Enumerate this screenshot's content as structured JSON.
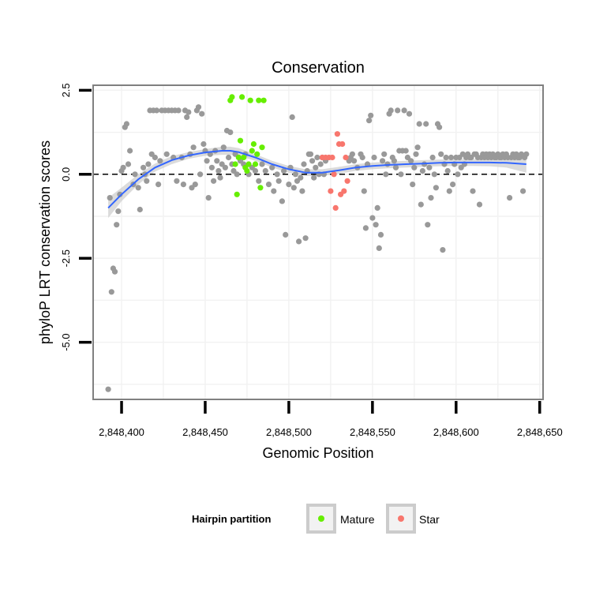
{
  "chart_data": {
    "type": "scatter",
    "title": "Conservation",
    "xlabel": "Genomic Position",
    "ylabel": "phyloP LRT conservation scores",
    "xlim": [
      2848383,
      2848652
    ],
    "ylim": [
      -6.7,
      2.65
    ],
    "x_ticks": [
      2848400,
      2848450,
      2848500,
      2848550,
      2848600,
      2848650
    ],
    "x_tick_labels": [
      "2,848,400",
      "2,848,450",
      "2,848,500",
      "2,848,550",
      "2,848,600",
      "2,848,650"
    ],
    "y_ticks": [
      2.5,
      0.0,
      -2.5,
      -5.0
    ],
    "y_tick_labels": [
      "2.5",
      "0.0",
      "-2.5",
      "-5.0"
    ],
    "hline": 0,
    "grid": true,
    "legend": {
      "title": "Hairpin partition",
      "position": "bottom",
      "entries": [
        {
          "label": "Mature",
          "color": "#66ee00"
        },
        {
          "label": "Star",
          "color": "#f8766d"
        }
      ]
    },
    "series": [
      {
        "color": "#999999",
        "points": [
          [
            2848392,
            -6.4
          ],
          [
            2848393,
            -0.7
          ],
          [
            2848394,
            -3.5
          ],
          [
            2848395,
            -2.8
          ],
          [
            2848396,
            -2.9
          ],
          [
            2848397,
            -1.5
          ],
          [
            2848398,
            -1.1
          ],
          [
            2848399,
            -0.6
          ],
          [
            2848400,
            0.1
          ],
          [
            2848401,
            0.2
          ],
          [
            2848402,
            1.4
          ],
          [
            2848403,
            1.5
          ],
          [
            2848404,
            0.3
          ],
          [
            2848405,
            0.7
          ],
          [
            2848407,
            -0.3
          ],
          [
            2848408,
            0.0
          ],
          [
            2848410,
            -0.4
          ],
          [
            2848411,
            -1.05
          ],
          [
            2848413,
            0.2
          ],
          [
            2848414,
            0.0
          ],
          [
            2848415,
            -0.2
          ],
          [
            2848416,
            0.3
          ],
          [
            2848417,
            1.9
          ],
          [
            2848418,
            0.6
          ],
          [
            2848419,
            1.9
          ],
          [
            2848420,
            0.5
          ],
          [
            2848421,
            1.9
          ],
          [
            2848422,
            -0.3
          ],
          [
            2848423,
            0.4
          ],
          [
            2848424,
            1.9
          ],
          [
            2848426,
            1.9
          ],
          [
            2848427,
            0.6
          ],
          [
            2848428,
            1.9
          ],
          [
            2848430,
            1.9
          ],
          [
            2848431,
            0.5
          ],
          [
            2848432,
            1.9
          ],
          [
            2848433,
            -0.2
          ],
          [
            2848434,
            1.9
          ],
          [
            2848436,
            0.5
          ],
          [
            2848437,
            -0.3
          ],
          [
            2848438,
            1.9
          ],
          [
            2848439,
            1.7
          ],
          [
            2848440,
            1.85
          ],
          [
            2848441,
            0.6
          ],
          [
            2848442,
            -0.4
          ],
          [
            2848443,
            0.8
          ],
          [
            2848444,
            -0.3
          ],
          [
            2848445,
            1.9
          ],
          [
            2848446,
            2.0
          ],
          [
            2848447,
            0.0
          ],
          [
            2848448,
            1.8
          ],
          [
            2848449,
            0.9
          ],
          [
            2848450,
            0.7
          ],
          [
            2848451,
            0.4
          ],
          [
            2848452,
            -0.7
          ],
          [
            2848453,
            0.6
          ],
          [
            2848454,
            0.2
          ],
          [
            2848455,
            -0.2
          ],
          [
            2848456,
            0.7
          ],
          [
            2848457,
            0.4
          ],
          [
            2848458,
            0.1
          ],
          [
            2848459,
            -0.1
          ],
          [
            2848460,
            0.3
          ],
          [
            2848461,
            0.8
          ],
          [
            2848462,
            0.2
          ],
          [
            2848463,
            1.3
          ],
          [
            2848464,
            0.5
          ],
          [
            2848465,
            1.25
          ],
          [
            2848466,
            0.3
          ],
          [
            2848467,
            0.1
          ],
          [
            2848468,
            0.6
          ],
          [
            2848469,
            0.0
          ],
          [
            2848471,
            0.4
          ],
          [
            2848473,
            0.3
          ],
          [
            2848474,
            0.6
          ],
          [
            2848476,
            0.0
          ],
          [
            2848478,
            0.2
          ],
          [
            2848480,
            0.1
          ],
          [
            2848482,
            -0.2
          ],
          [
            2848484,
            0.3
          ],
          [
            2848486,
            0.1
          ],
          [
            2848488,
            -0.3
          ],
          [
            2848490,
            0.2
          ],
          [
            2848491,
            -0.5
          ],
          [
            2848493,
            0.0
          ],
          [
            2848494,
            -0.2
          ],
          [
            2848496,
            -0.8
          ],
          [
            2848497,
            0.1
          ],
          [
            2848498,
            -1.8
          ],
          [
            2848500,
            -0.3
          ],
          [
            2848501,
            0.2
          ],
          [
            2848502,
            1.7
          ],
          [
            2848503,
            -0.4
          ],
          [
            2848504,
            0.0
          ],
          [
            2848505,
            -0.2
          ],
          [
            2848506,
            -2.0
          ],
          [
            2848507,
            -0.1
          ],
          [
            2848508,
            -0.5
          ],
          [
            2848509,
            0.3
          ],
          [
            2848510,
            -1.9
          ],
          [
            2848511,
            0.1
          ],
          [
            2848512,
            0.6
          ],
          [
            2848513,
            0.6
          ],
          [
            2848514,
            0.4
          ],
          [
            2848515,
            -0.1
          ],
          [
            2848516,
            0.2
          ],
          [
            2848517,
            0.5
          ],
          [
            2848518,
            0.0
          ],
          [
            2848519,
            0.3
          ],
          [
            2848520,
            0.5
          ],
          [
            2848521,
            0.0
          ],
          [
            2848522,
            0.4
          ],
          [
            2848536,
            0.4
          ],
          [
            2848537,
            0.5
          ],
          [
            2848538,
            0.6
          ],
          [
            2848539,
            0.4
          ],
          [
            2848541,
            0.2
          ],
          [
            2848543,
            0.6
          ],
          [
            2848544,
            0.5
          ],
          [
            2848545,
            -0.5
          ],
          [
            2848546,
            -1.6
          ],
          [
            2848547,
            0.3
          ],
          [
            2848548,
            1.6
          ],
          [
            2848549,
            1.75
          ],
          [
            2848550,
            -1.3
          ],
          [
            2848551,
            0.5
          ],
          [
            2848552,
            -1.5
          ],
          [
            2848553,
            -1.0
          ],
          [
            2848554,
            -2.2
          ],
          [
            2848555,
            -1.8
          ],
          [
            2848556,
            0.4
          ],
          [
            2848557,
            0.6
          ],
          [
            2848558,
            0.0
          ],
          [
            2848559,
            0.3
          ],
          [
            2848560,
            1.8
          ],
          [
            2848561,
            1.9
          ],
          [
            2848562,
            0.5
          ],
          [
            2848563,
            0.4
          ],
          [
            2848564,
            0.2
          ],
          [
            2848565,
            1.9
          ],
          [
            2848566,
            0.7
          ],
          [
            2848567,
            0.0
          ],
          [
            2848568,
            0.7
          ],
          [
            2848569,
            1.9
          ],
          [
            2848570,
            0.7
          ],
          [
            2848571,
            0.5
          ],
          [
            2848572,
            1.8
          ],
          [
            2848573,
            0.4
          ],
          [
            2848574,
            -0.3
          ],
          [
            2848575,
            0.2
          ],
          [
            2848576,
            0.6
          ],
          [
            2848577,
            0.8
          ],
          [
            2848578,
            1.5
          ],
          [
            2848579,
            -0.9
          ],
          [
            2848580,
            0.1
          ],
          [
            2848581,
            0.3
          ],
          [
            2848582,
            1.5
          ],
          [
            2848583,
            -1.5
          ],
          [
            2848584,
            0.2
          ],
          [
            2848585,
            -0.7
          ],
          [
            2848586,
            0.5
          ],
          [
            2848587,
            0.0
          ],
          [
            2848588,
            -0.4
          ],
          [
            2848589,
            1.5
          ],
          [
            2848590,
            1.4
          ],
          [
            2848591,
            0.6
          ],
          [
            2848592,
            -2.25
          ],
          [
            2848593,
            0.3
          ],
          [
            2848594,
            0.5
          ],
          [
            2848595,
            0.1
          ],
          [
            2848596,
            -0.5
          ],
          [
            2848597,
            0.5
          ],
          [
            2848598,
            -0.3
          ],
          [
            2848599,
            0.3
          ],
          [
            2848600,
            0.5
          ],
          [
            2848601,
            0.0
          ],
          [
            2848602,
            0.5
          ],
          [
            2848603,
            0.2
          ],
          [
            2848604,
            0.6
          ],
          [
            2848605,
            0.3
          ],
          [
            2848606,
            0.5
          ],
          [
            2848607,
            0.6
          ],
          [
            2848608,
            0.5
          ],
          [
            2848609,
            0.5
          ],
          [
            2848610,
            -0.5
          ],
          [
            2848611,
            0.6
          ],
          [
            2848612,
            0.6
          ],
          [
            2848613,
            0.5
          ],
          [
            2848614,
            -0.9
          ],
          [
            2848615,
            0.5
          ],
          [
            2848616,
            0.6
          ],
          [
            2848617,
            0.5
          ],
          [
            2848618,
            0.6
          ],
          [
            2848619,
            0.5
          ],
          [
            2848620,
            0.6
          ],
          [
            2848621,
            0.5
          ],
          [
            2848622,
            0.6
          ],
          [
            2848623,
            0.5
          ],
          [
            2848624,
            0.5
          ],
          [
            2848625,
            0.6
          ],
          [
            2848626,
            0.5
          ],
          [
            2848627,
            0.5
          ],
          [
            2848628,
            0.6
          ],
          [
            2848629,
            0.5
          ],
          [
            2848630,
            0.6
          ],
          [
            2848631,
            0.5
          ],
          [
            2848632,
            -0.7
          ],
          [
            2848633,
            0.5
          ],
          [
            2848634,
            0.6
          ],
          [
            2848635,
            0.5
          ],
          [
            2848636,
            0.6
          ],
          [
            2848637,
            0.5
          ],
          [
            2848638,
            0.5
          ],
          [
            2848639,
            0.6
          ],
          [
            2848640,
            -0.5
          ],
          [
            2848641,
            0.5
          ],
          [
            2848642,
            0.6
          ]
        ]
      },
      {
        "name": "Mature",
        "color": "#66ee00",
        "points": [
          [
            2848465,
            2.2
          ],
          [
            2848466,
            2.3
          ],
          [
            2848468,
            0.3
          ],
          [
            2848469,
            -0.6
          ],
          [
            2848470,
            0.5
          ],
          [
            2848471,
            1.0
          ],
          [
            2848472,
            2.3
          ],
          [
            2848473,
            0.5
          ],
          [
            2848474,
            0.2
          ],
          [
            2848475,
            0.1
          ],
          [
            2848476,
            0.3
          ],
          [
            2848477,
            2.2
          ],
          [
            2848478,
            0.7
          ],
          [
            2848479,
            0.9
          ],
          [
            2848480,
            0.3
          ],
          [
            2848481,
            0.6
          ],
          [
            2848482,
            2.2
          ],
          [
            2848483,
            -0.4
          ],
          [
            2848484,
            0.8
          ],
          [
            2848485,
            2.2
          ]
        ]
      },
      {
        "name": "Star",
        "color": "#f8766d",
        "points": [
          [
            2848520,
            0.5
          ],
          [
            2848522,
            0.5
          ],
          [
            2848524,
            0.5
          ],
          [
            2848525,
            -0.5
          ],
          [
            2848526,
            0.5
          ],
          [
            2848527,
            0.0
          ],
          [
            2848528,
            -1.0
          ],
          [
            2848529,
            1.2
          ],
          [
            2848530,
            0.9
          ],
          [
            2848531,
            -0.6
          ],
          [
            2848532,
            0.9
          ],
          [
            2848533,
            -0.5
          ],
          [
            2848534,
            0.5
          ],
          [
            2848535,
            -0.2
          ]
        ]
      }
    ],
    "smooth": {
      "color": "#3366ff",
      "band_color": "#cccccc",
      "x": [
        2848392,
        2848400,
        2848410,
        2848420,
        2848430,
        2848440,
        2848450,
        2848460,
        2848465,
        2848470,
        2848480,
        2848490,
        2848500,
        2848510,
        2848520,
        2848530,
        2848540,
        2848550,
        2848560,
        2848570,
        2848580,
        2848590,
        2848600,
        2848610,
        2848620,
        2848630,
        2848642
      ],
      "y": [
        -1.0,
        -0.6,
        -0.15,
        0.2,
        0.42,
        0.56,
        0.65,
        0.7,
        0.7,
        0.66,
        0.5,
        0.3,
        0.15,
        0.05,
        0.05,
        0.12,
        0.2,
        0.25,
        0.28,
        0.3,
        0.32,
        0.34,
        0.35,
        0.35,
        0.35,
        0.34,
        0.3
      ],
      "lower": [
        -1.3,
        -0.8,
        -0.3,
        0.08,
        0.3,
        0.46,
        0.55,
        0.58,
        0.58,
        0.55,
        0.4,
        0.2,
        0.05,
        -0.05,
        -0.05,
        0.02,
        0.1,
        0.15,
        0.18,
        0.2,
        0.22,
        0.24,
        0.25,
        0.25,
        0.24,
        0.2,
        0.05
      ],
      "upper": [
        -0.7,
        -0.4,
        0.0,
        0.32,
        0.54,
        0.66,
        0.75,
        0.82,
        0.82,
        0.78,
        0.6,
        0.4,
        0.25,
        0.15,
        0.15,
        0.22,
        0.3,
        0.35,
        0.38,
        0.4,
        0.42,
        0.44,
        0.45,
        0.45,
        0.46,
        0.48,
        0.55
      ]
    }
  }
}
